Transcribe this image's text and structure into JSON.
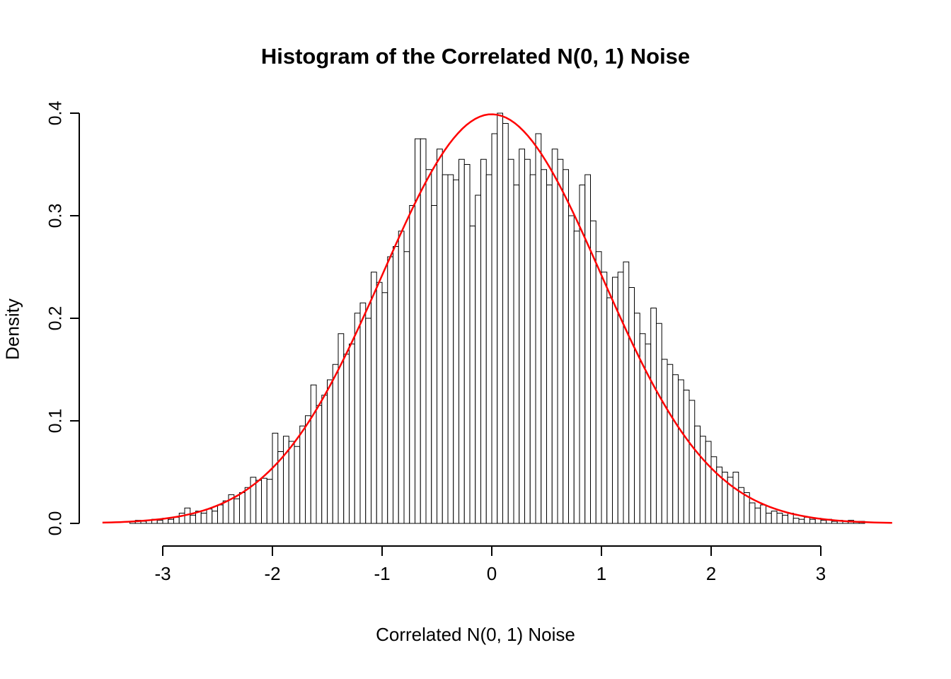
{
  "chart_data": {
    "type": "histogram",
    "title": "Histogram of the Correlated N(0, 1) Noise",
    "xlabel": "Correlated N(0, 1) Noise",
    "ylabel": "Density",
    "xlim": [
      -3.6,
      3.7
    ],
    "ylim": [
      0,
      0.4
    ],
    "grid": false,
    "xtick_values": [
      -3,
      -2,
      -1,
      0,
      1,
      2,
      3
    ],
    "xtick_labels": [
      "-3",
      "-2",
      "-1",
      "0",
      "1",
      "2",
      "3"
    ],
    "ytick_values": [
      0,
      0.1,
      0.2,
      0.3,
      0.4
    ],
    "ytick_labels": [
      "0.0",
      "0.1",
      "0.2",
      "0.3",
      "0.4"
    ],
    "bin_start": -3.3,
    "bin_width": 0.05,
    "densities": [
      0.002,
      0.003,
      0.002,
      0.003,
      0.004,
      0.003,
      0.005,
      0.004,
      0.006,
      0.01,
      0.015,
      0.008,
      0.012,
      0.01,
      0.014,
      0.012,
      0.018,
      0.022,
      0.028,
      0.024,
      0.03,
      0.035,
      0.045,
      0.042,
      0.044,
      0.043,
      0.088,
      0.07,
      0.085,
      0.08,
      0.075,
      0.095,
      0.105,
      0.135,
      0.115,
      0.125,
      0.14,
      0.155,
      0.185,
      0.165,
      0.175,
      0.205,
      0.215,
      0.2,
      0.245,
      0.235,
      0.225,
      0.26,
      0.27,
      0.285,
      0.265,
      0.31,
      0.375,
      0.375,
      0.345,
      0.31,
      0.365,
      0.34,
      0.34,
      0.335,
      0.355,
      0.35,
      0.29,
      0.32,
      0.355,
      0.34,
      0.38,
      0.4,
      0.39,
      0.355,
      0.33,
      0.365,
      0.355,
      0.34,
      0.38,
      0.345,
      0.33,
      0.365,
      0.355,
      0.345,
      0.3,
      0.285,
      0.33,
      0.34,
      0.295,
      0.265,
      0.245,
      0.22,
      0.24,
      0.245,
      0.255,
      0.23,
      0.205,
      0.185,
      0.175,
      0.21,
      0.195,
      0.16,
      0.155,
      0.145,
      0.14,
      0.13,
      0.12,
      0.095,
      0.085,
      0.08,
      0.065,
      0.055,
      0.05,
      0.045,
      0.05,
      0.035,
      0.03,
      0.02,
      0.015,
      0.018,
      0.01,
      0.012,
      0.01,
      0.008,
      0.01,
      0.005,
      0.004,
      0.006,
      0.004,
      0.005,
      0.003,
      0.004,
      0.002,
      0.003,
      0.002,
      0.003,
      0.002,
      0.002
    ],
    "bar_fill": "#ffffff",
    "bar_stroke": "#000000",
    "axis_color": "#000000",
    "curve": {
      "type": "normal-density",
      "mean": 0,
      "sd": 1,
      "xmin": -3.55,
      "xmax": 3.65,
      "color": "#ff0000"
    }
  }
}
